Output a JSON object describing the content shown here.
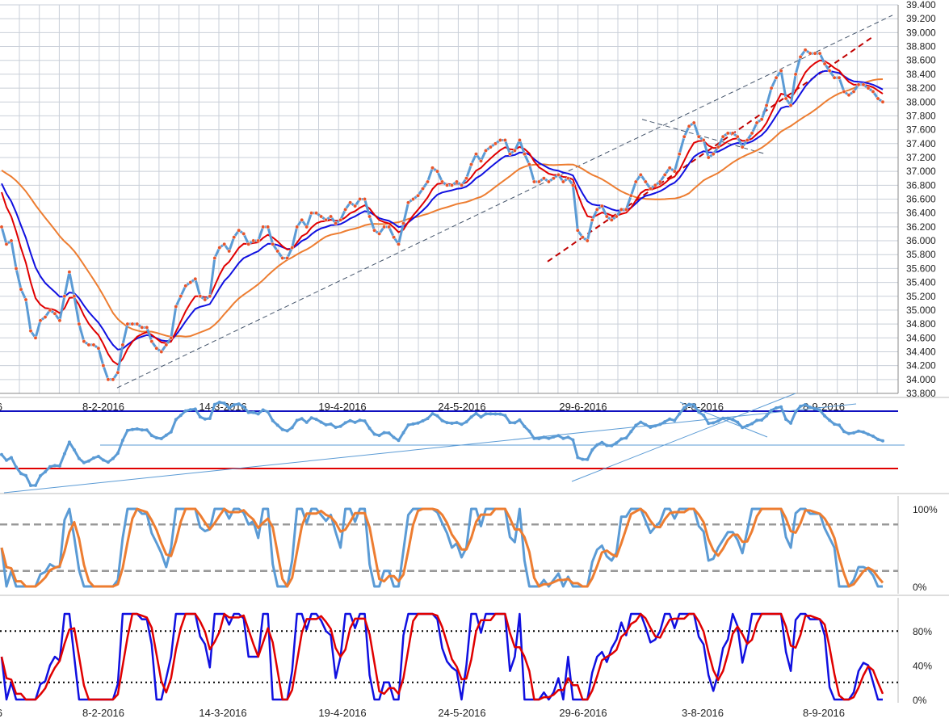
{
  "chart_data": [
    {
      "type": "line",
      "panel": "price",
      "ylim": [
        33.8,
        39.4
      ],
      "y_ticks": [
        "39.400",
        "39.200",
        "39.000",
        "38.800",
        "38.600",
        "38.400",
        "38.200",
        "38.000",
        "37.800",
        "37.600",
        "37.400",
        "37.200",
        "37.000",
        "36.800",
        "36.600",
        "36.400",
        "36.200",
        "36.000",
        "35.800",
        "35.600",
        "35.400",
        "35.200",
        "35.000",
        "34.800",
        "34.600",
        "34.400",
        "34.200",
        "34.000",
        "33.800"
      ],
      "x_ticks": [
        "6",
        "8-2-2016",
        "14-3-2016",
        "19-4-2016",
        "24-5-2016",
        "29-6-2016",
        "3-8-2016",
        "8-9-2016"
      ],
      "grid": true,
      "colors": {
        "price": "#5b9bd5",
        "markers": "#e8542a",
        "ma_fast": "#e00000",
        "ma_mid": "#1010e0",
        "ma_slow": "#ed7d31",
        "trendline": "#44546a",
        "trendline_red": "#c00000"
      },
      "series": [
        {
          "values": [
            36.2,
            35.95,
            36.0,
            35.6,
            35.3,
            35.15,
            34.7,
            34.6,
            34.85,
            34.9,
            35.0,
            34.95,
            34.85,
            35.2,
            35.55,
            35.2,
            34.8,
            34.55,
            34.5,
            34.5,
            34.45,
            34.2,
            34.0,
            34.0,
            34.1,
            34.5,
            34.8,
            34.8,
            34.8,
            34.75,
            34.75,
            34.55,
            34.45,
            34.4,
            34.5,
            34.6,
            35.05,
            35.2,
            35.35,
            35.4,
            35.45,
            35.2,
            35.15,
            35.2,
            35.75,
            35.9,
            35.95,
            35.85,
            36.05,
            36.15,
            36.1,
            35.95,
            36.0,
            36.0,
            36.2,
            36.2,
            35.95,
            35.85,
            35.75,
            35.75,
            35.9,
            36.2,
            36.3,
            36.2,
            36.4,
            36.4,
            36.35,
            36.3,
            36.35,
            36.25,
            36.3,
            36.45,
            36.55,
            36.5,
            36.6,
            36.6,
            36.35,
            36.15,
            36.1,
            36.2,
            36.2,
            36.05,
            35.95,
            36.25,
            36.55,
            36.6,
            36.65,
            36.75,
            36.85,
            37.05,
            37.0,
            36.85,
            36.8,
            36.8,
            36.85,
            36.8,
            36.9,
            37.1,
            37.25,
            37.15,
            37.3,
            37.35,
            37.4,
            37.45,
            37.45,
            37.25,
            37.3,
            37.45,
            37.25,
            37.1,
            36.85,
            36.85,
            36.9,
            36.85,
            36.9,
            36.95,
            36.85,
            36.9,
            36.8,
            36.15,
            36.05,
            36.0,
            36.3,
            36.45,
            36.5,
            36.35,
            36.3,
            36.35,
            36.45,
            36.45,
            36.65,
            36.85,
            36.95,
            36.85,
            36.75,
            36.8,
            36.85,
            36.95,
            37.05,
            37.0,
            37.25,
            37.5,
            37.65,
            37.7,
            37.5,
            37.45,
            37.2,
            37.25,
            37.35,
            37.5,
            37.55,
            37.55,
            37.5,
            37.35,
            37.45,
            37.55,
            37.7,
            37.75,
            37.95,
            38.2,
            38.35,
            38.45,
            38.05,
            37.95,
            38.4,
            38.65,
            38.75,
            38.7,
            38.7,
            38.7,
            38.55,
            38.45,
            38.35,
            38.35,
            38.15,
            38.1,
            38.15,
            38.25,
            38.25,
            38.2,
            38.15,
            38.05,
            38.0
          ]
        },
        {
          "values": []
        },
        {
          "values": []
        },
        {
          "values": []
        }
      ]
    },
    {
      "type": "line",
      "panel": "oscillator",
      "series": [
        {
          "values": []
        }
      ]
    },
    {
      "type": "line",
      "panel": "stochastic_1",
      "ylim": [
        0,
        100
      ],
      "y_ticks": [
        "100%",
        "0%"
      ],
      "levels": [
        20,
        80
      ],
      "series": [
        {
          "values": []
        },
        {
          "values": []
        }
      ]
    },
    {
      "type": "line",
      "panel": "stochastic_2",
      "ylim": [
        0,
        100
      ],
      "y_ticks": [
        "80%",
        "40%",
        "0%"
      ],
      "levels": [
        20,
        80
      ],
      "x_ticks": [
        "6",
        "8-2-2016",
        "14-3-2016",
        "19-4-2016",
        "24-5-2016",
        "29-6-2016",
        "3-8-2016",
        "8-9-2016"
      ],
      "series": [
        {
          "values": []
        },
        {
          "values": []
        }
      ]
    }
  ]
}
